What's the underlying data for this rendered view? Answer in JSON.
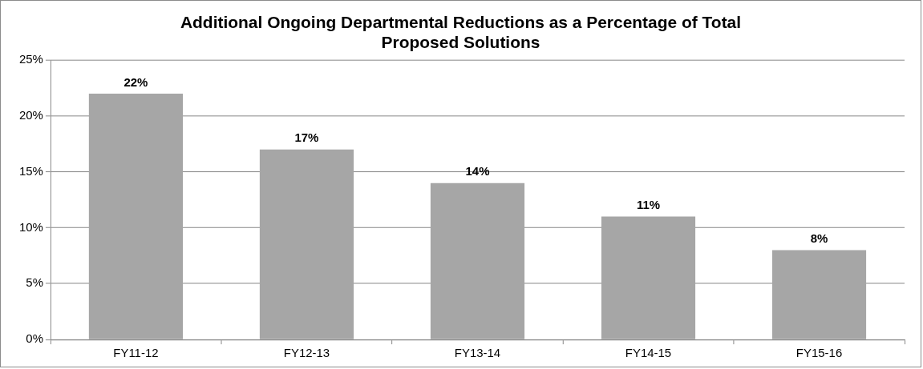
{
  "chart_data": {
    "type": "bar",
    "title": "Additional Ongoing Departmental Reductions as a Percentage of Total Proposed Solutions",
    "categories": [
      "FY11-12",
      "FY12-13",
      "FY13-14",
      "FY14-15",
      "FY15-16"
    ],
    "values": [
      22,
      17,
      14,
      11,
      8
    ],
    "value_labels": [
      "22%",
      "17%",
      "14%",
      "11%",
      "8%"
    ],
    "color": "#a6a6a6",
    "ylim": [
      0,
      25
    ],
    "yticks": [
      {
        "value": 0,
        "label": "0%"
      },
      {
        "value": 5,
        "label": "5%"
      },
      {
        "value": 10,
        "label": "10%"
      },
      {
        "value": 15,
        "label": "15%"
      },
      {
        "value": 20,
        "label": "20%"
      },
      {
        "value": 25,
        "label": "25%"
      }
    ],
    "grid": "y",
    "legend": false
  }
}
